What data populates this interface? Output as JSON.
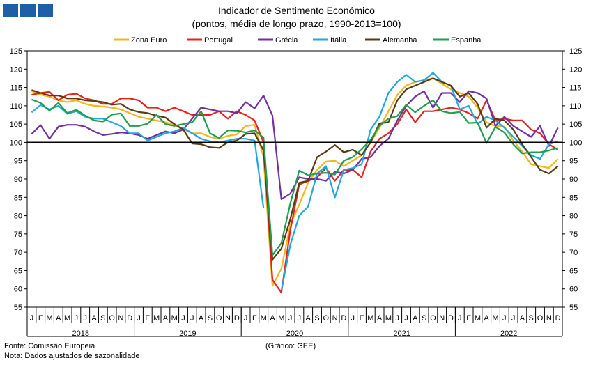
{
  "header": {
    "logo_squares": 3,
    "logo_color": "#1f5fa8"
  },
  "footer": {
    "source": "Fonte: Comissão Europeia",
    "note": "Nota: Dados ajustados de sazonalidade",
    "credit": "(Gráfico: GEE)"
  },
  "chart_data": {
    "type": "line",
    "title": "Indicador de Sentimento Económico",
    "subtitle": "(pontos, média de longo prazo, 1990-2013=100)",
    "ylim": [
      55,
      125
    ],
    "yticks": [
      55,
      60,
      65,
      70,
      75,
      80,
      85,
      90,
      95,
      100,
      105,
      110,
      115,
      120,
      125
    ],
    "reference_line": 100,
    "reference_color": "#000000",
    "legend_position": "top",
    "grid": false,
    "dual_y_axis": true,
    "month_labels": [
      "J",
      "F",
      "M",
      "A",
      "M",
      "J",
      "J",
      "A",
      "S",
      "O",
      "N",
      "D"
    ],
    "years": [
      "2018",
      "2019",
      "2020",
      "2021",
      "2022"
    ],
    "x": [
      "2018-01",
      "2018-02",
      "2018-03",
      "2018-04",
      "2018-05",
      "2018-06",
      "2018-07",
      "2018-08",
      "2018-09",
      "2018-10",
      "2018-11",
      "2018-12",
      "2019-01",
      "2019-02",
      "2019-03",
      "2019-04",
      "2019-05",
      "2019-06",
      "2019-07",
      "2019-08",
      "2019-09",
      "2019-10",
      "2019-11",
      "2019-12",
      "2020-01",
      "2020-02",
      "2020-03",
      "2020-04",
      "2020-05",
      "2020-06",
      "2020-07",
      "2020-08",
      "2020-09",
      "2020-10",
      "2020-11",
      "2020-12",
      "2021-01",
      "2021-02",
      "2021-03",
      "2021-04",
      "2021-05",
      "2021-06",
      "2021-07",
      "2021-08",
      "2021-09",
      "2021-10",
      "2021-11",
      "2021-12",
      "2022-01",
      "2022-02",
      "2022-03",
      "2022-04",
      "2022-05",
      "2022-06",
      "2022-07",
      "2022-08",
      "2022-09",
      "2022-10",
      "2022-11",
      "2022-12"
    ],
    "series": [
      {
        "name": "Zona Euro",
        "color": "#f5b51b",
        "values": [
          114.0,
          113.0,
          112.5,
          111.5,
          111.0,
          111.5,
          110.5,
          110.0,
          109.8,
          109.5,
          109.0,
          108.0,
          107.0,
          106.5,
          106.0,
          105.5,
          104.8,
          103.5,
          102.5,
          102.5,
          101.5,
          101.0,
          101.8,
          102.2,
          104.5,
          104.8,
          96.0,
          60.8,
          65.5,
          77.5,
          83.0,
          89.0,
          92.5,
          94.8,
          95.0,
          93.5,
          95.0,
          96.5,
          100.0,
          104.0,
          108.5,
          113.0,
          115.5,
          116.5,
          117.0,
          117.5,
          116.0,
          114.5,
          113.5,
          112.5,
          109.5,
          105.5,
          104.5,
          104.3,
          100.5,
          97.5,
          94.0,
          93.5,
          93.0,
          95.5
        ]
      },
      {
        "name": "Portugal",
        "color": "#e8201e",
        "values": [
          113.0,
          113.5,
          113.8,
          111.5,
          113.0,
          113.3,
          112.0,
          111.5,
          110.5,
          110.5,
          112.0,
          112.0,
          111.5,
          109.5,
          109.5,
          108.5,
          109.5,
          108.5,
          107.5,
          107.5,
          107.5,
          108.5,
          106.5,
          108.5,
          107.5,
          106.0,
          100.0,
          62.5,
          59.0,
          76.0,
          88.5,
          89.5,
          90.5,
          93.0,
          89.5,
          92.5,
          92.5,
          90.5,
          97.5,
          101.0,
          102.5,
          105.0,
          109.0,
          105.5,
          108.5,
          108.5,
          109.0,
          109.5,
          109.0,
          108.0,
          106.5,
          111.5,
          106.0,
          106.5,
          106.0,
          106.0,
          103.5,
          102.5,
          99.5,
          98.0
        ]
      },
      {
        "name": "Grécia",
        "color": "#7030a0",
        "values": [
          102.3,
          104.7,
          101.0,
          104.3,
          104.8,
          104.8,
          104.3,
          103.0,
          102.0,
          102.3,
          102.7,
          102.5,
          102.0,
          101.0,
          102.0,
          103.0,
          102.5,
          103.5,
          106.5,
          109.5,
          109.0,
          108.5,
          108.5,
          108.0,
          111.0,
          109.3,
          112.8,
          107.3,
          84.5,
          86.0,
          90.5,
          90.0,
          90.0,
          89.5,
          92.0,
          91.5,
          92.5,
          95.5,
          96.0,
          99.0,
          101.0,
          106.0,
          110.0,
          112.5,
          114.0,
          109.5,
          113.5,
          113.5,
          111.0,
          114.0,
          113.5,
          112.0,
          104.5,
          107.0,
          104.5,
          103.0,
          101.5,
          104.5,
          99.0,
          104.0
        ]
      },
      {
        "name": "Itália",
        "color": "#1fa7e0",
        "values": [
          108.2,
          110.2,
          109.0,
          110.0,
          107.8,
          108.5,
          107.0,
          106.5,
          106.5,
          105.5,
          104.5,
          102.5,
          102.5,
          100.5,
          101.5,
          102.5,
          103.0,
          104.0,
          102.5,
          101.0,
          100.3,
          100.0,
          100.5,
          101.0,
          101.0,
          100.5,
          82.0,
          null,
          59.5,
          72.0,
          80.0,
          82.5,
          91.5,
          93.5,
          85.0,
          92.5,
          93.0,
          94.0,
          103.5,
          107.0,
          113.5,
          116.5,
          118.5,
          116.5,
          117.0,
          119.0,
          116.5,
          115.5,
          109.0,
          110.0,
          105.0,
          107.0,
          106.0,
          104.0,
          101.5,
          99.0,
          96.5,
          95.5,
          99.5,
          100.3
        ]
      },
      {
        "name": "Alemanha",
        "color": "#5c3a10",
        "values": [
          114.3,
          113.5,
          112.8,
          112.8,
          112.0,
          112.0,
          111.5,
          111.3,
          111.0,
          110.3,
          110.5,
          109.0,
          108.3,
          108.0,
          107.3,
          106.8,
          105.0,
          103.5,
          99.7,
          99.5,
          98.7,
          98.5,
          100.0,
          100.5,
          102.3,
          102.5,
          97.8,
          68.0,
          71.0,
          79.0,
          89.0,
          89.5,
          96.0,
          97.5,
          99.3,
          97.3,
          98.0,
          96.5,
          100.0,
          105.2,
          105.5,
          111.5,
          114.5,
          115.5,
          116.5,
          117.5,
          116.5,
          115.5,
          112.5,
          113.5,
          110.5,
          104.0,
          106.5,
          106.0,
          103.5,
          99.5,
          96.0,
          92.5,
          91.5,
          93.5
        ]
      },
      {
        "name": "Espanha",
        "color": "#1e9e4f",
        "values": [
          111.7,
          110.8,
          108.7,
          110.8,
          108.0,
          108.9,
          107.3,
          106.0,
          105.7,
          107.6,
          107.9,
          104.5,
          104.5,
          105.1,
          107.5,
          105.0,
          104.5,
          105.0,
          105.5,
          108.5,
          102.5,
          101.2,
          103.3,
          103.2,
          102.7,
          103.3,
          101.3,
          69.2,
          72.5,
          83.3,
          92.3,
          91.0,
          91.5,
          91.7,
          91.2,
          95.0,
          96.0,
          98.1,
          100.7,
          104.5,
          106.5,
          107.2,
          110.3,
          108.2,
          110.0,
          111.5,
          108.5,
          108.0,
          108.3,
          105.3,
          105.4,
          99.8,
          104.2,
          102.7,
          99.5,
          97.0,
          97.3,
          97.3,
          97.8,
          98.5
        ]
      }
    ]
  }
}
